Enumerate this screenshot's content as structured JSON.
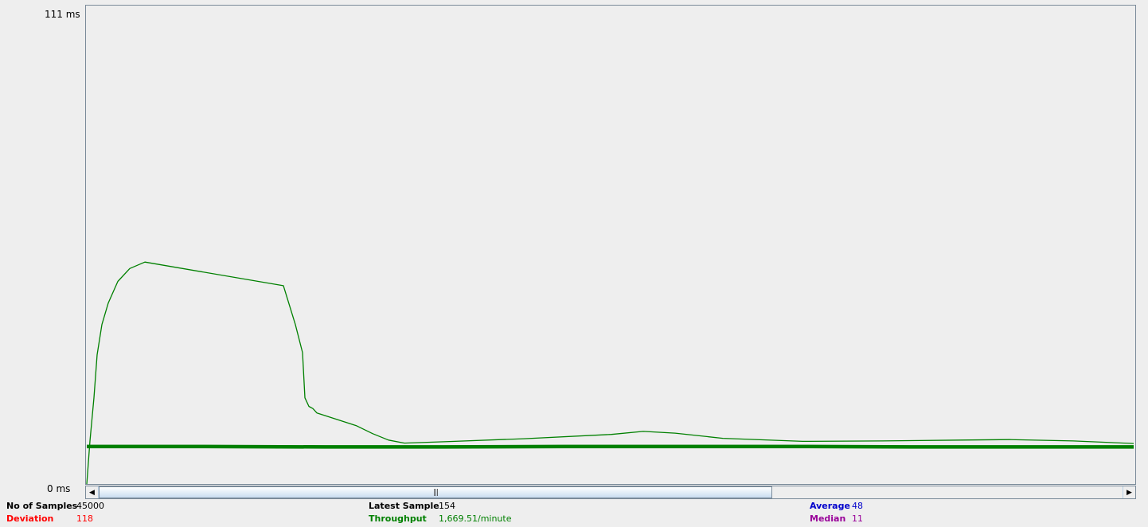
{
  "axis": {
    "y_max_label": "111  ms",
    "y_min_label": "0  ms"
  },
  "scrollbar": {
    "left_arrow": "◀",
    "right_arrow": "▶",
    "grip": "|||"
  },
  "stats": {
    "samples": {
      "label": "No of Samples",
      "value": "45000",
      "color": "#000000"
    },
    "deviation": {
      "label": "Deviation",
      "value": "118",
      "color": "#ff0000"
    },
    "latest": {
      "label": "Latest Sample",
      "value": "154",
      "color": "#000000"
    },
    "throughput": {
      "label": "Throughput",
      "value": "1,669.51/minute",
      "color": "#008000"
    },
    "average": {
      "label": "Average",
      "value": "48",
      "color": "#0000cc"
    },
    "median": {
      "label": "Median",
      "value": "11",
      "color": "#990099"
    }
  },
  "chart_data": {
    "type": "line",
    "ylim": [
      0,
      111
    ],
    "series_color": "#008000",
    "series": [
      {
        "values_ms": [
          0,
          10,
          20,
          30,
          37,
          42,
          47,
          50,
          51.5,
          46,
          37,
          30.5,
          20,
          18,
          17.5,
          16.5,
          13.5,
          11.7,
          10.2,
          9.5,
          9.8,
          10.5,
          11.5,
          12.2,
          11.8,
          10.6,
          9.9,
          10.0,
          10.2,
          10.3,
          10.0,
          9.4
        ]
      },
      {
        "values_ms": [
          8.7,
          8.7,
          8.6,
          8.6,
          8.7,
          8.7,
          8.7,
          8.6,
          8.6,
          8.6
        ]
      }
    ]
  }
}
